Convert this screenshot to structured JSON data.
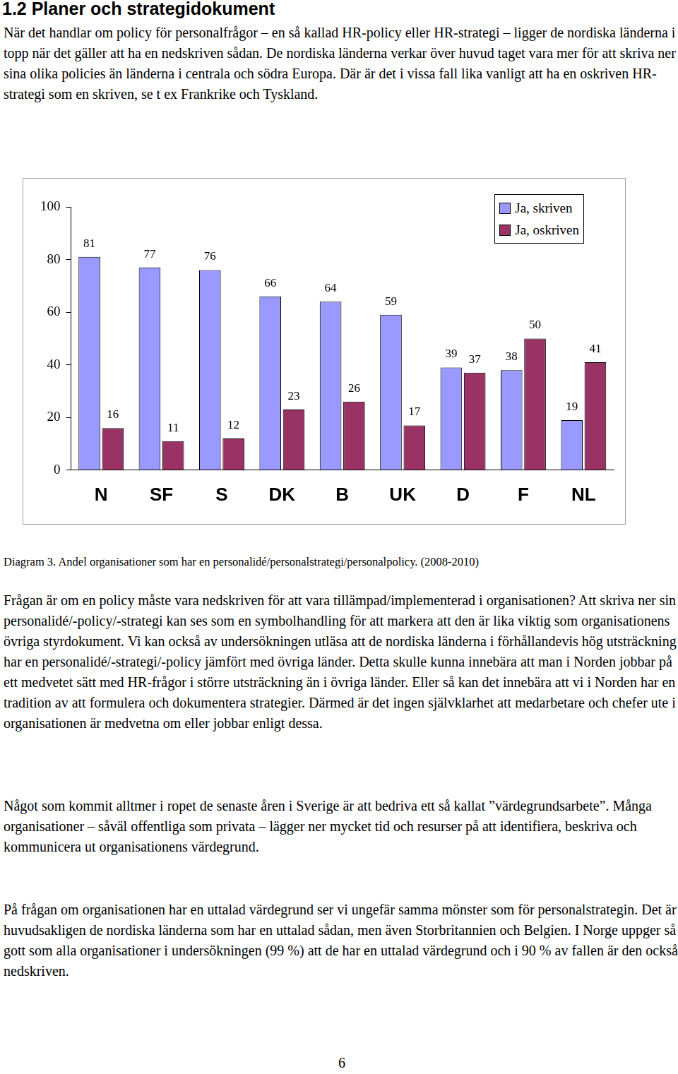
{
  "heading": "1.2 Planer och strategidokument",
  "paragraphs_before": [
    "När det handlar om policy för personalfrågor – en så kallad HR-policy eller HR-strategi – ligger de nordiska länderna i topp när det gäller att ha en nedskriven sådan. De nordiska länderna verkar över huvud taget vara mer för att skriva ner sina olika policies än länderna i centrala och södra Europa. Där är det i vissa fall lika vanligt att ha en oskriven HR-strategi som en skriven, se t ex Frankrike och Tyskland."
  ],
  "chart_data": {
    "type": "bar",
    "categories": [
      "N",
      "SF",
      "S",
      "DK",
      "B",
      "UK",
      "D",
      "F",
      "NL"
    ],
    "series": [
      {
        "name": "Ja, skriven",
        "color": "#9999ff",
        "values": [
          81,
          77,
          76,
          66,
          64,
          59,
          39,
          38,
          19
        ]
      },
      {
        "name": "Ja, oskriven",
        "color": "#993366",
        "values": [
          16,
          11,
          12,
          23,
          26,
          17,
          37,
          50,
          41
        ]
      }
    ],
    "ylim": [
      0,
      100
    ],
    "yticks": [
      0,
      20,
      40,
      60,
      80,
      100
    ],
    "grid": false,
    "legend": "top-right",
    "data_labels": true
  },
  "caption": "Diagram 3. Andel organisationer som har en personalidé/personalstrategi/personalpolicy. (2008-2010)",
  "paragraphs_after": [
    "Frågan är om en policy måste vara nedskriven för att vara tillämpad/implementerad i organisationen? Att skriva ner sin personalidé/-policy/-strategi kan ses som en symbolhandling för att markera att den är lika viktig som organisationens övriga styrdokument. Vi kan också av undersökningen utläsa att de nordiska länderna i förhållandevis hög utsträckning har en personalidé/-strategi/-policy jämfört med övriga länder. Detta skulle kunna innebära att man i Norden jobbar på ett medvetet sätt med HR-frågor i större utsträckning än i övriga länder. Eller så kan det innebära att vi i Norden har en tradition av att formulera och dokumentera strategier. Därmed är det ingen självklarhet att medarbetare och chefer ute i organisationen är medvetna om eller jobbar enligt dessa.",
    "Något som kommit alltmer i ropet de senaste åren i Sverige är att bedriva ett så kallat ”värdegrundsarbete”. Många organisationer – såväl offentliga som privata – lägger ner mycket tid och resurser på att identifiera, beskriva och kommunicera ut organisationens värdegrund.",
    "På frågan om organisationen har en uttalad värdegrund ser vi ungefär samma mönster som för personalstrategin. Det är huvudsakligen de nordiska länderna som har en uttalad sådan, men även Storbritannien och Belgien. I Norge uppger så gott som alla organisationer i undersökningen (99 %) att de har en uttalad värdegrund och i 90 % av fallen är den också nedskriven."
  ],
  "page_number": 6
}
